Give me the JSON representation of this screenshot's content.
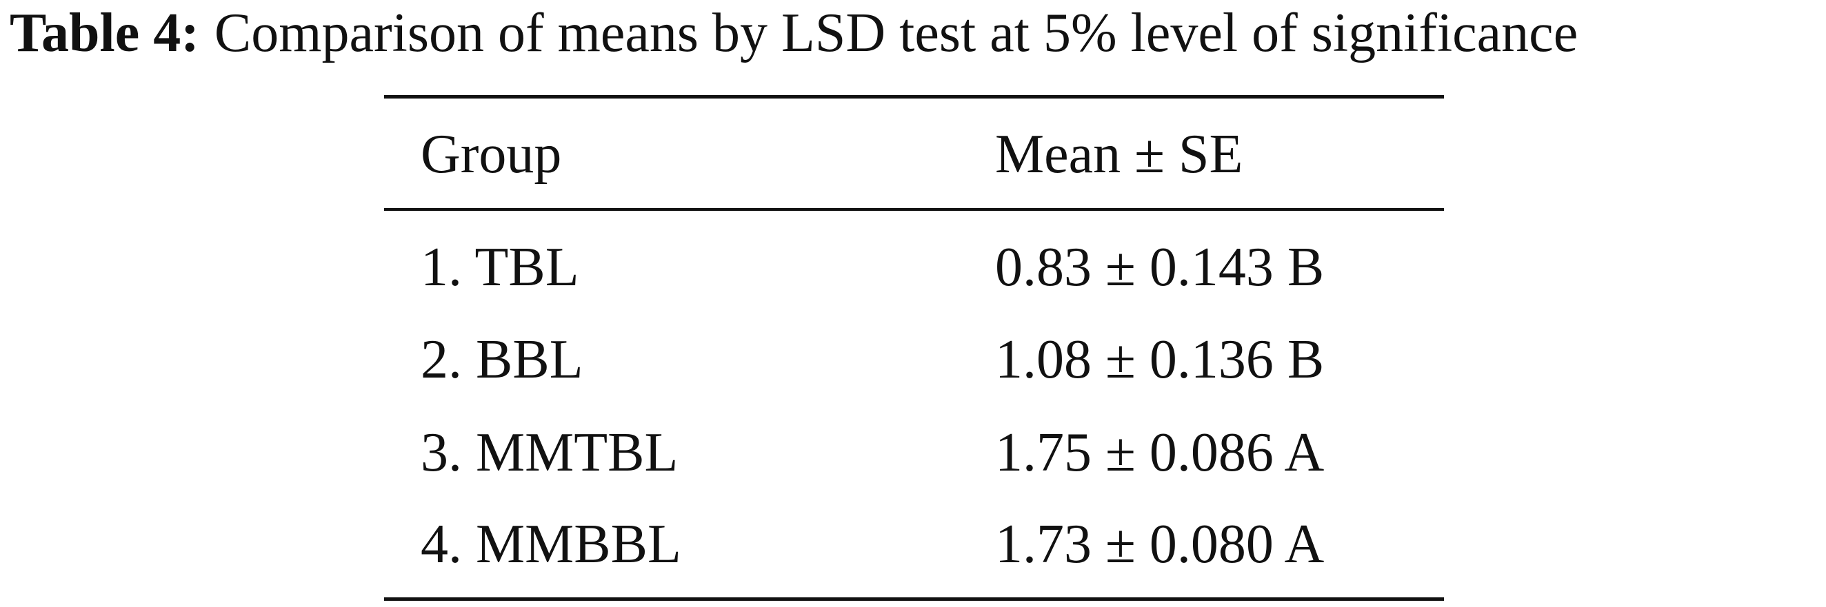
{
  "caption": {
    "label": "Table 4:",
    "text": "Comparison of means by LSD test at 5% level of significance"
  },
  "table": {
    "header": [
      "Group",
      "Mean ± SE"
    ],
    "rows": [
      [
        "1. TBL",
        "0.83 ± 0.143 B"
      ],
      [
        "2. BBL",
        "1.08 ± 0.136 B"
      ],
      [
        "3. MMTBL",
        "1.75 ± 0.086 A"
      ],
      [
        "4. MMBBL",
        "1.73 ± 0.080 A"
      ]
    ]
  }
}
